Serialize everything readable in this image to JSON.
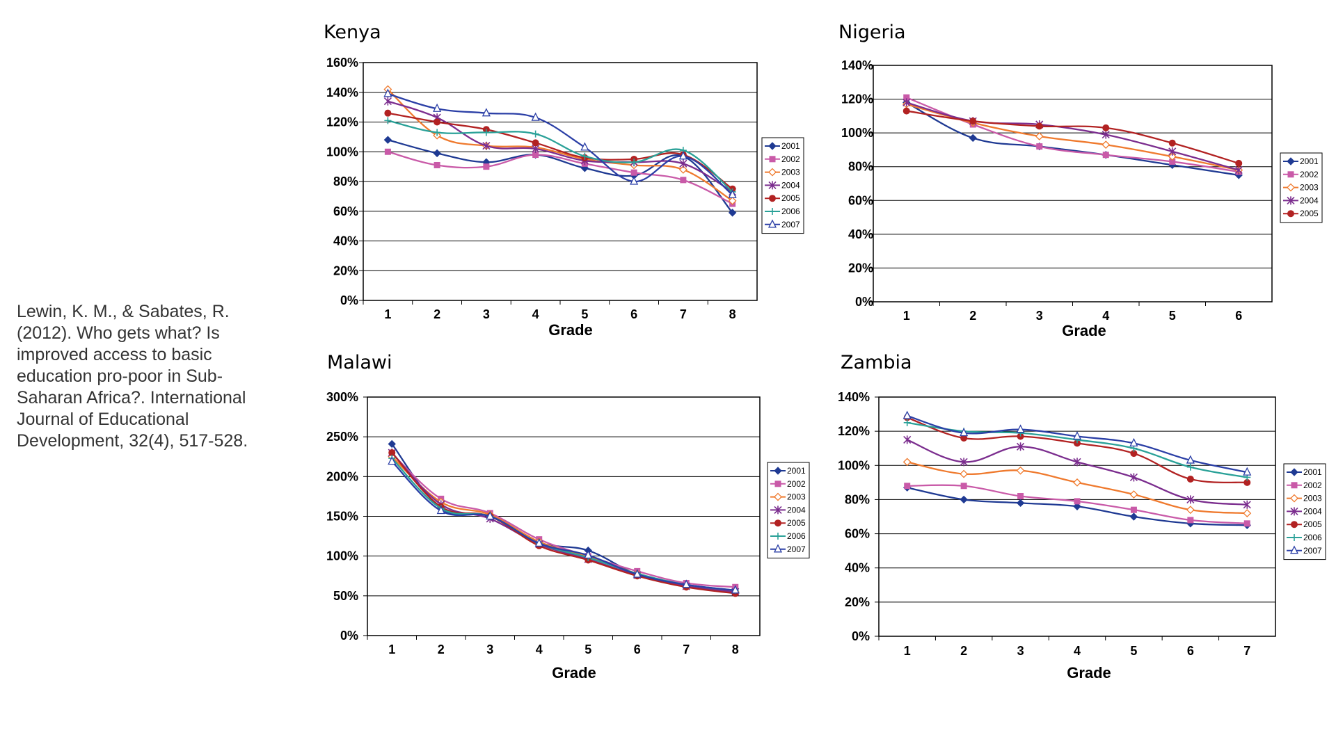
{
  "citation": "Lewin, K. M., & Sabates, R. (2012). Who gets what? Is improved access to basic education pro-poor in Sub-Saharan Africa?. International Journal of Educational Development, 32(4), 517-528.",
  "colors": {
    "2001": "#1f3a93",
    "2002": "#c95aa8",
    "2003": "#ef7a2e",
    "2004": "#7b2d8e",
    "2005": "#b22222",
    "2006": "#2aa198",
    "2007": "#2b3fa6"
  },
  "chart_data": [
    {
      "type": "line",
      "title": "Kenya",
      "xlabel": "Grade",
      "ylabel": "",
      "categories": [
        "1",
        "2",
        "3",
        "4",
        "5",
        "6",
        "7",
        "8"
      ],
      "ylim": [
        0,
        160
      ],
      "yticks": [
        "0%",
        "20%",
        "40%",
        "60%",
        "80%",
        "100%",
        "120%",
        "140%",
        "160%"
      ],
      "grid": true,
      "legend": "right",
      "series": [
        {
          "name": "2001",
          "marker": "diamond",
          "values": [
            108,
            99,
            93,
            98,
            89,
            84,
            97,
            59
          ]
        },
        {
          "name": "2002",
          "marker": "square",
          "values": [
            100,
            91,
            90,
            98,
            92,
            86,
            81,
            65
          ]
        },
        {
          "name": "2003",
          "marker": "diamond-open",
          "values": [
            142,
            111,
            104,
            103,
            95,
            91,
            88,
            67
          ]
        },
        {
          "name": "2004",
          "marker": "x",
          "values": [
            134,
            123,
            104,
            102,
            94,
            93,
            92,
            73
          ]
        },
        {
          "name": "2005",
          "marker": "circle",
          "values": [
            126,
            120,
            115,
            106,
            96,
            95,
            98,
            75
          ]
        },
        {
          "name": "2006",
          "marker": "plus",
          "values": [
            121,
            113,
            113,
            112,
            97,
            93,
            101,
            73
          ]
        },
        {
          "name": "2007",
          "marker": "triangle-open",
          "values": [
            139,
            129,
            126,
            123,
            103,
            80,
            97,
            71
          ]
        }
      ]
    },
    {
      "type": "line",
      "title": "Nigeria",
      "xlabel": "Grade",
      "ylabel": "",
      "categories": [
        "1",
        "2",
        "3",
        "4",
        "5",
        "6"
      ],
      "ylim": [
        0,
        140
      ],
      "yticks": [
        "0%",
        "20%",
        "40%",
        "60%",
        "80%",
        "100%",
        "120%",
        "140%"
      ],
      "grid": true,
      "legend": "right",
      "series": [
        {
          "name": "2001",
          "marker": "diamond",
          "values": [
            118,
            97,
            92,
            87,
            81,
            75
          ]
        },
        {
          "name": "2002",
          "marker": "square",
          "values": [
            121,
            105,
            92,
            87,
            83,
            77
          ]
        },
        {
          "name": "2003",
          "marker": "diamond-open",
          "values": [
            117,
            106,
            98,
            93,
            86,
            78
          ]
        },
        {
          "name": "2004",
          "marker": "x",
          "values": [
            118,
            107,
            105,
            99,
            89,
            78
          ]
        },
        {
          "name": "2005",
          "marker": "circle",
          "values": [
            113,
            107,
            104,
            103,
            94,
            82
          ]
        }
      ]
    },
    {
      "type": "line",
      "title": "Malawi",
      "xlabel": "Grade",
      "ylabel": "",
      "categories": [
        "1",
        "2",
        "3",
        "4",
        "5",
        "6",
        "7",
        "8"
      ],
      "ylim": [
        0,
        300
      ],
      "yticks": [
        "0%",
        "50%",
        "100%",
        "150%",
        "200%",
        "250%",
        "300%"
      ],
      "grid": true,
      "legend": "right",
      "series": [
        {
          "name": "2001",
          "marker": "diamond",
          "values": [
            241,
            160,
            150,
            117,
            107,
            77,
            63,
            54
          ]
        },
        {
          "name": "2002",
          "marker": "square",
          "values": [
            229,
            172,
            154,
            121,
            100,
            81,
            66,
            61
          ]
        },
        {
          "name": "2003",
          "marker": "diamond-open",
          "values": [
            225,
            168,
            152,
            118,
            99,
            78,
            63,
            55
          ]
        },
        {
          "name": "2004",
          "marker": "x",
          "values": [
            230,
            165,
            147,
            115,
            96,
            76,
            62,
            55
          ]
        },
        {
          "name": "2005",
          "marker": "circle",
          "values": [
            230,
            162,
            150,
            113,
            95,
            75,
            61,
            53
          ]
        },
        {
          "name": "2006",
          "marker": "plus",
          "values": [
            223,
            160,
            150,
            116,
            98,
            78,
            64,
            57
          ]
        },
        {
          "name": "2007",
          "marker": "triangle-open",
          "values": [
            219,
            157,
            150,
            116,
            101,
            77,
            64,
            57
          ]
        }
      ]
    },
    {
      "type": "line",
      "title": "Zambia",
      "xlabel": "Grade",
      "ylabel": "",
      "categories": [
        "1",
        "2",
        "3",
        "4",
        "5",
        "6",
        "7"
      ],
      "ylim": [
        0,
        140
      ],
      "yticks": [
        "0%",
        "20%",
        "40%",
        "60%",
        "80%",
        "100%",
        "120%",
        "140%"
      ],
      "grid": true,
      "legend": "right",
      "series": [
        {
          "name": "2001",
          "marker": "diamond",
          "values": [
            87,
            80,
            78,
            76,
            70,
            66,
            65
          ]
        },
        {
          "name": "2002",
          "marker": "square",
          "values": [
            88,
            88,
            82,
            79,
            74,
            68,
            66
          ]
        },
        {
          "name": "2003",
          "marker": "diamond-open",
          "values": [
            102,
            95,
            97,
            90,
            83,
            74,
            72
          ]
        },
        {
          "name": "2004",
          "marker": "x",
          "values": [
            115,
            102,
            111,
            102,
            93,
            80,
            77
          ]
        },
        {
          "name": "2005",
          "marker": "circle",
          "values": [
            128,
            116,
            117,
            113,
            107,
            92,
            90
          ]
        },
        {
          "name": "2006",
          "marker": "plus",
          "values": [
            125,
            120,
            119,
            115,
            110,
            99,
            93
          ]
        },
        {
          "name": "2007",
          "marker": "triangle-open",
          "values": [
            129,
            119,
            121,
            117,
            113,
            103,
            96
          ]
        }
      ]
    }
  ]
}
